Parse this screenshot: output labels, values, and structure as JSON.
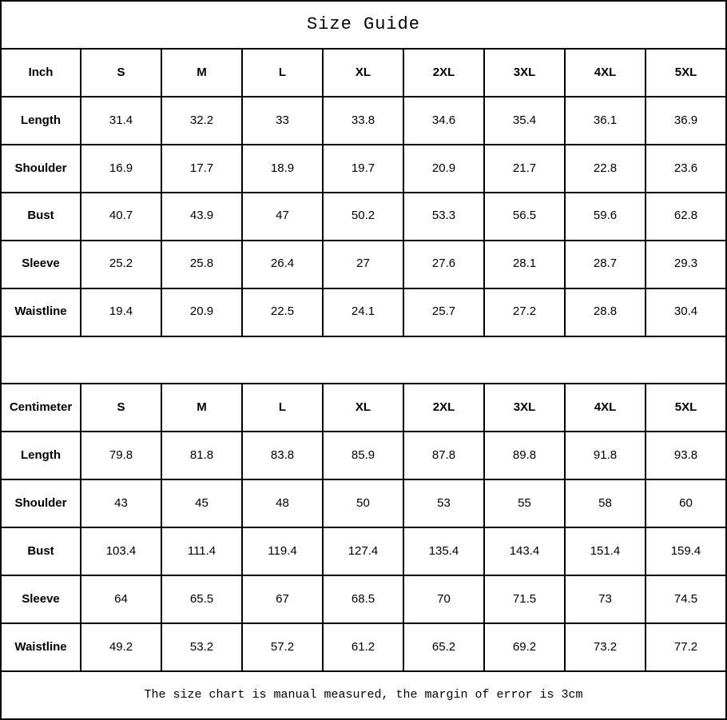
{
  "chart_data": {
    "type": "table",
    "title": "Size Guide",
    "note": "The size chart is manual measured, the margin of error is 3cm",
    "tables": [
      {
        "unit_label": "Inch",
        "sizes": [
          "S",
          "M",
          "L",
          "XL",
          "2XL",
          "3XL",
          "4XL",
          "5XL"
        ],
        "rows": [
          {
            "label": "Length",
            "values": [
              "31.4",
              "32.2",
              "33",
              "33.8",
              "34.6",
              "35.4",
              "36.1",
              "36.9"
            ]
          },
          {
            "label": "Shoulder",
            "values": [
              "16.9",
              "17.7",
              "18.9",
              "19.7",
              "20.9",
              "21.7",
              "22.8",
              "23.6"
            ]
          },
          {
            "label": "Bust",
            "values": [
              "40.7",
              "43.9",
              "47",
              "50.2",
              "53.3",
              "56.5",
              "59.6",
              "62.8"
            ]
          },
          {
            "label": "Sleeve",
            "values": [
              "25.2",
              "25.8",
              "26.4",
              "27",
              "27.6",
              "28.1",
              "28.7",
              "29.3"
            ]
          },
          {
            "label": "Waistline",
            "values": [
              "19.4",
              "20.9",
              "22.5",
              "24.1",
              "25.7",
              "27.2",
              "28.8",
              "30.4"
            ]
          }
        ]
      },
      {
        "unit_label": "Centimeter",
        "sizes": [
          "S",
          "M",
          "L",
          "XL",
          "2XL",
          "3XL",
          "4XL",
          "5XL"
        ],
        "rows": [
          {
            "label": "Length",
            "values": [
              "79.8",
              "81.8",
              "83.8",
              "85.9",
              "87.8",
              "89.8",
              "91.8",
              "93.8"
            ]
          },
          {
            "label": "Shoulder",
            "values": [
              "43",
              "45",
              "48",
              "50",
              "53",
              "55",
              "58",
              "60"
            ]
          },
          {
            "label": "Bust",
            "values": [
              "103.4",
              "111.4",
              "119.4",
              "127.4",
              "135.4",
              "143.4",
              "151.4",
              "159.4"
            ]
          },
          {
            "label": "Sleeve",
            "values": [
              "64",
              "65.5",
              "67",
              "68.5",
              "70",
              "71.5",
              "73",
              "74.5"
            ]
          },
          {
            "label": "Waistline",
            "values": [
              "49.2",
              "53.2",
              "57.2",
              "61.2",
              "65.2",
              "69.2",
              "73.2",
              "77.2"
            ]
          }
        ]
      }
    ]
  }
}
